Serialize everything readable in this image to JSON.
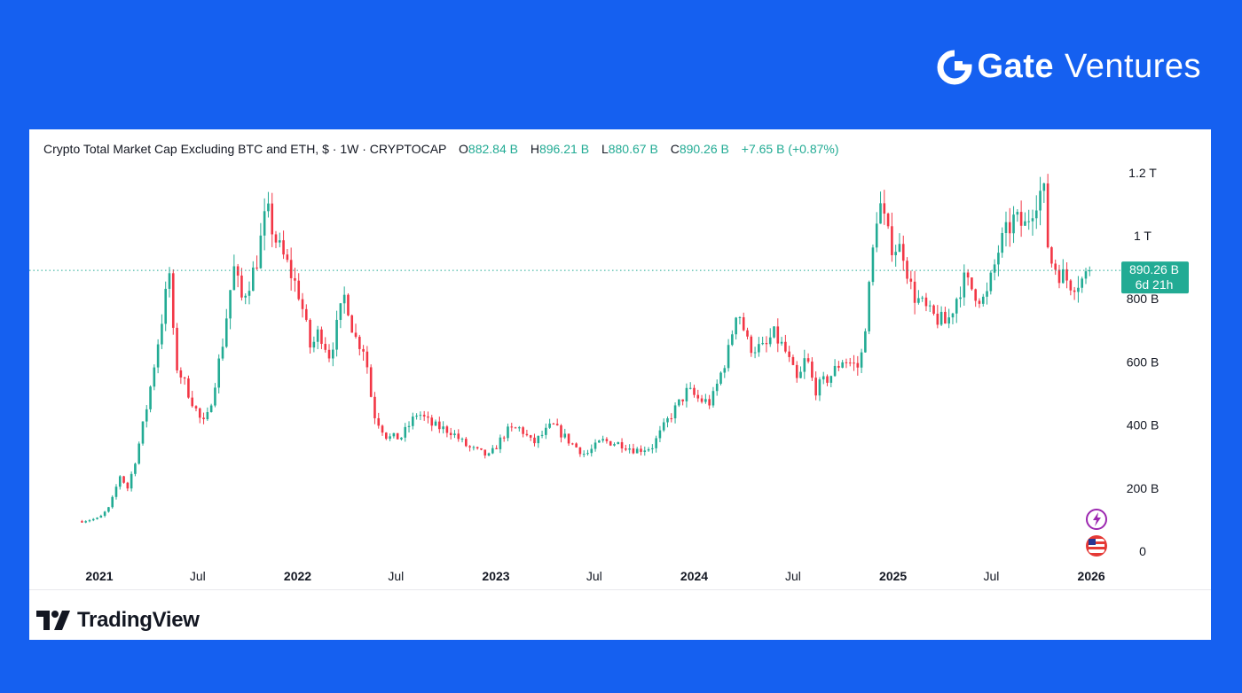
{
  "brand": {
    "gate": "Gate",
    "ventures": "Ventures"
  },
  "header": {
    "title": "Crypto Total Market Cap Excluding BTC and ETH, $ · 1W · CRYPTOCAP",
    "o_label": "O",
    "o_value": "882.84 B",
    "h_label": "H",
    "h_value": "896.21 B",
    "l_label": "L",
    "l_value": "880.67 B",
    "c_label": "C",
    "c_value": "890.26 B",
    "change": "+7.65 B (+0.87%)"
  },
  "price_tag": {
    "value": "890.26 B",
    "countdown": "6d 21h"
  },
  "footer": {
    "logo_text": "TradingView"
  },
  "colors": {
    "up": "#22ab94",
    "down": "#f23645",
    "background": "#1560f0"
  },
  "chart_data": {
    "type": "candlestick",
    "title": "Crypto Total Market Cap Excluding BTC and ETH, $ · 1W · CRYPTOCAP",
    "xlabel": "",
    "ylabel": "",
    "y_ticks": [
      "1.2 T",
      "1 T",
      "800 B",
      "600 B",
      "400 B",
      "200 B",
      "0"
    ],
    "x_ticks": [
      "2021",
      "Jul",
      "2022",
      "Jul",
      "2023",
      "Jul",
      "2024",
      "Jul",
      "2025",
      "Jul",
      "2026"
    ],
    "ylim": [
      0,
      1200
    ],
    "unit": "B",
    "last_close": 890.26,
    "price_path": [
      [
        "2020-11-30",
        95
      ],
      [
        "2021-01-01",
        105
      ],
      [
        "2021-01-20",
        140
      ],
      [
        "2021-02-08",
        240
      ],
      [
        "2021-02-22",
        200
      ],
      [
        "2021-03-10",
        300
      ],
      [
        "2021-04-01",
        480
      ],
      [
        "2021-05-10",
        880
      ],
      [
        "2021-05-20",
        600
      ],
      [
        "2021-06-10",
        520
      ],
      [
        "2021-07-10",
        400
      ],
      [
        "2021-07-20",
        430
      ],
      [
        "2021-08-15",
        650
      ],
      [
        "2021-09-05",
        900
      ],
      [
        "2021-09-20",
        800
      ],
      [
        "2021-10-15",
        900
      ],
      [
        "2021-11-05",
        1080
      ],
      [
        "2021-11-25",
        970
      ],
      [
        "2021-12-15",
        900
      ],
      [
        "2022-01-05",
        810
      ],
      [
        "2022-01-25",
        640
      ],
      [
        "2022-02-10",
        700
      ],
      [
        "2022-03-01",
        620
      ],
      [
        "2022-03-30",
        820
      ],
      [
        "2022-04-15",
        680
      ],
      [
        "2022-05-05",
        640
      ],
      [
        "2022-05-20",
        440
      ],
      [
        "2022-06-15",
        360
      ],
      [
        "2022-07-10",
        360
      ],
      [
        "2022-08-10",
        440
      ],
      [
        "2022-09-05",
        400
      ],
      [
        "2022-10-10",
        380
      ],
      [
        "2022-11-10",
        330
      ],
      [
        "2022-12-20",
        300
      ],
      [
        "2023-01-20",
        380
      ],
      [
        "2023-02-15",
        390
      ],
      [
        "2023-03-10",
        340
      ],
      [
        "2023-04-15",
        400
      ],
      [
        "2023-05-15",
        350
      ],
      [
        "2023-06-15",
        305
      ],
      [
        "2023-07-15",
        350
      ],
      [
        "2023-08-20",
        340
      ],
      [
        "2023-09-15",
        320
      ],
      [
        "2023-10-15",
        330
      ],
      [
        "2023-11-15",
        420
      ],
      [
        "2023-12-20",
        510
      ],
      [
        "2024-01-10",
        480
      ],
      [
        "2024-02-01",
        470
      ],
      [
        "2024-03-05",
        640
      ],
      [
        "2024-03-20",
        780
      ],
      [
        "2024-04-10",
        650
      ],
      [
        "2024-05-10",
        640
      ],
      [
        "2024-05-25",
        690
      ],
      [
        "2024-06-15",
        640
      ],
      [
        "2024-07-10",
        530
      ],
      [
        "2024-07-25",
        620
      ],
      [
        "2024-08-10",
        510
      ],
      [
        "2024-09-10",
        560
      ],
      [
        "2024-10-01",
        610
      ],
      [
        "2024-11-01",
        580
      ],
      [
        "2024-11-15",
        780
      ],
      [
        "2024-12-05",
        1120
      ],
      [
        "2024-12-25",
        980
      ],
      [
        "2025-01-20",
        950
      ],
      [
        "2025-02-05",
        820
      ],
      [
        "2025-03-10",
        750
      ],
      [
        "2025-04-10",
        720
      ],
      [
        "2025-05-10",
        860
      ],
      [
        "2025-06-20",
        790
      ],
      [
        "2025-07-15",
        960
      ],
      [
        "2025-08-10",
        1050
      ],
      [
        "2025-09-01",
        1030
      ],
      [
        "2025-09-20",
        1120
      ],
      [
        "2025-10-05",
        1150
      ],
      [
        "2025-10-15",
        930
      ],
      [
        "2025-11-05",
        880
      ],
      [
        "2025-11-25",
        850
      ],
      [
        "2025-12-15",
        860
      ],
      [
        "2025-12-31",
        890.26
      ]
    ]
  }
}
